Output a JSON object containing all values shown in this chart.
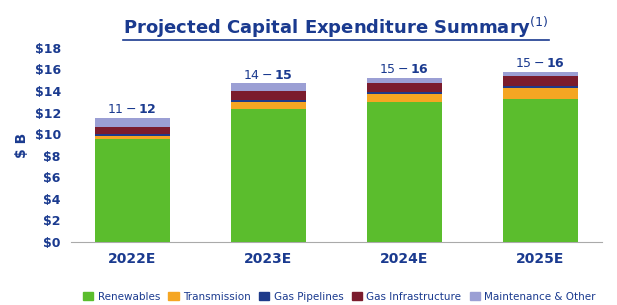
{
  "title": "Projected Capital Expenditure Summary",
  "ylabel": "$ B",
  "categories": [
    "2022E",
    "2023E",
    "2024E",
    "2025E"
  ],
  "bar_labels": [
    "$11 - $12",
    "$14 - $15",
    "$15 - $16",
    "$15 - $16"
  ],
  "series": {
    "Renewables": [
      9.5,
      12.3,
      13.0,
      13.3
    ],
    "Transmission": [
      0.3,
      0.7,
      0.7,
      1.0
    ],
    "Gas Pipelines": [
      0.2,
      0.2,
      0.2,
      0.2
    ],
    "Gas Infrastructure": [
      0.7,
      0.8,
      0.8,
      0.9
    ],
    "Maintenance & Other": [
      0.8,
      0.7,
      0.5,
      0.4
    ]
  },
  "colors": {
    "Renewables": "#5BBD2D",
    "Transmission": "#F5A623",
    "Gas Pipelines": "#1E3A8A",
    "Gas Infrastructure": "#7B1C2D",
    "Maintenance & Other": "#9B9FD4"
  },
  "ylim": [
    0,
    18
  ],
  "yticks": [
    0,
    2,
    4,
    6,
    8,
    10,
    12,
    14,
    16,
    18
  ],
  "ytick_labels": [
    "$0",
    "$2",
    "$4",
    "$6",
    "$8",
    "$10",
    "$12",
    "$14",
    "$16",
    "$18"
  ],
  "title_color": "#1A3A8F",
  "bar_width": 0.55,
  "background_color": "#FFFFFF",
  "title_fontsize": 13,
  "axis_label_fontsize": 10,
  "tick_fontsize": 9,
  "bar_label_fontsize": 9,
  "legend_fontsize": 7.5
}
